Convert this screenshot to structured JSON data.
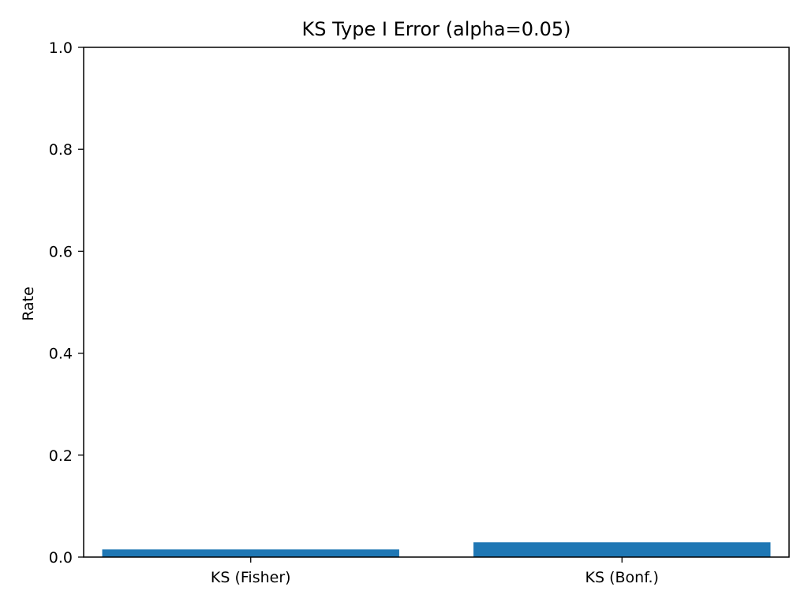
{
  "chart_data": {
    "type": "bar",
    "title": "KS Type I Error (alpha=0.05)",
    "xlabel": "",
    "ylabel": "Rate",
    "categories": [
      "KS (Fisher)",
      "KS (Bonf.)"
    ],
    "values": [
      0.015,
      0.029
    ],
    "ylim": [
      0,
      1.0
    ],
    "yticks": [
      "0.0",
      "0.2",
      "0.4",
      "0.6",
      "0.8",
      "1.0"
    ],
    "ytick_values": [
      0,
      0.2,
      0.4,
      0.6,
      0.8,
      1.0
    ],
    "grid": false,
    "legend": "none",
    "bar_color": "#1f77b4"
  }
}
